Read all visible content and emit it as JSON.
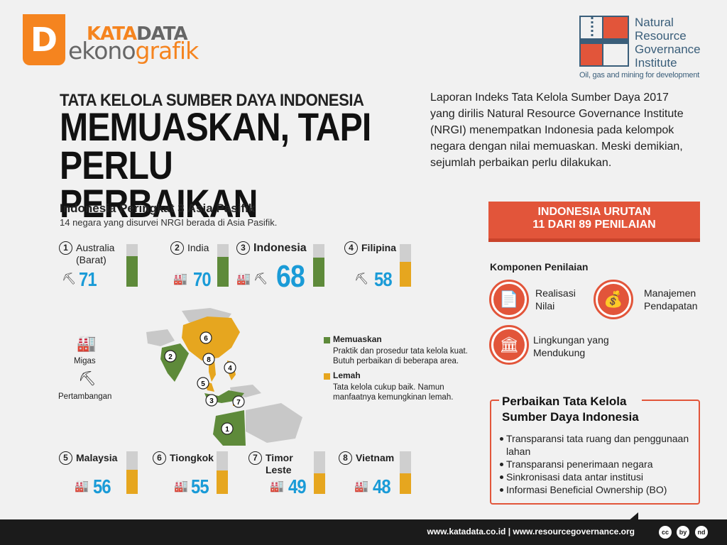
{
  "header": {
    "logo_letter": "D",
    "brand_kata": "KATA",
    "brand_data": "DATA",
    "brand_ekono": "ekono",
    "brand_grafik": "grafik",
    "partner_name": "Natural Resource Governance Institute",
    "partner_tagline": "Oil, gas and mining for development"
  },
  "title": {
    "kicker": "TATA KELOLA SUMBER DAYA INDONESIA",
    "headline": "MEMUASKAN, TAPI PERLU PERBAIKAN",
    "intro": "Laporan Indeks Tata Kelola Sumber Daya 2017 yang dirilis Natural Resource Governance Institute (NRGI) menempatkan Indonesia pada kelompok negara dengan nilai memuaskan. Meski demikian, sejumlah perbaikan perlu dilakukan."
  },
  "ranking": {
    "title": "Indonesia Peringkat 3 Asia Pasifik",
    "subtitle": "14 negara yang disurvei NRGI berada di Asia Pasifik."
  },
  "countries": [
    {
      "rank": "1",
      "name": "Australia",
      "name2": "(Barat)",
      "score": 71,
      "status": "memuaskan",
      "sectors": [
        "mining"
      ]
    },
    {
      "rank": "2",
      "name": "India",
      "score": 70,
      "status": "memuaskan",
      "sectors": [
        "oil-gas",
        "mining"
      ]
    },
    {
      "rank": "3",
      "name": "Indonesia",
      "score": 68,
      "status": "memuaskan",
      "sectors": [
        "oil-gas",
        "mining"
      ]
    },
    {
      "rank": "4",
      "name": "Filipina",
      "score": 58,
      "status": "lemah",
      "sectors": [
        "mining"
      ]
    },
    {
      "rank": "5",
      "name": "Malaysia",
      "score": 56,
      "status": "lemah",
      "sectors": [
        "oil-gas"
      ]
    },
    {
      "rank": "6",
      "name": "Tiongkok",
      "score": 55,
      "status": "lemah",
      "sectors": [
        "oil-gas"
      ]
    },
    {
      "rank": "7",
      "name": "Timor",
      "name2": "Leste",
      "score": 49,
      "status": "lemah",
      "sectors": [
        "oil-gas"
      ]
    },
    {
      "rank": "8",
      "name": "Vietnam",
      "score": 48,
      "status": "lemah",
      "sectors": [
        "oil-gas"
      ]
    }
  ],
  "sector_legend": {
    "oil_gas": "Migas",
    "mining": "Pertambangan"
  },
  "status_legend": {
    "satisfactory": {
      "label": "Memuaskan",
      "line1": "Praktik dan prosedur tata kelola kuat.",
      "line2": "Butuh perbaikan di beberapa area.",
      "color": "#5e8a3a"
    },
    "weak": {
      "label": "Lemah",
      "line1": "Tata kelola cukup baik. Namun",
      "line2": "manfaatnya kemungkinan lemah.",
      "color": "#e6a61f"
    }
  },
  "map_markers": [
    "1",
    "2",
    "3",
    "4",
    "5",
    "6",
    "7",
    "8"
  ],
  "overall": {
    "line1": "INDONESIA URUTAN",
    "line2": "11 DARI 89 PENILAIAN"
  },
  "components": {
    "title": "Komponen Penilaian",
    "items": [
      {
        "line1": "Realisasi",
        "line2": "Nilai",
        "icon": "document-check-icon"
      },
      {
        "line1": "Manajemen",
        "line2": "Pendapatan",
        "icon": "money-bag-icon"
      },
      {
        "line1": "Lingkungan yang",
        "line2": "Mendukung",
        "icon": "institution-icon"
      }
    ]
  },
  "improvements": {
    "title_line1": "Perbaikan Tata Kelola",
    "title_line2": "Sumber Daya Indonesia",
    "items": [
      "Transparansi tata ruang dan penggunaan lahan",
      "Transparansi penerimaan negara",
      "Sinkronisasi data antar institusi",
      "Informasi Beneficial Ownership (BO)"
    ]
  },
  "footer": {
    "links": "www.katadata.co.id | www.resourcegovernance.org",
    "badges": [
      "cc",
      "by",
      "nd"
    ]
  },
  "colors": {
    "accent": "#f5841f",
    "red": "#e2553a",
    "green": "#5e8a3a",
    "yellow": "#e6a61f",
    "blue": "#1a9bd7"
  }
}
